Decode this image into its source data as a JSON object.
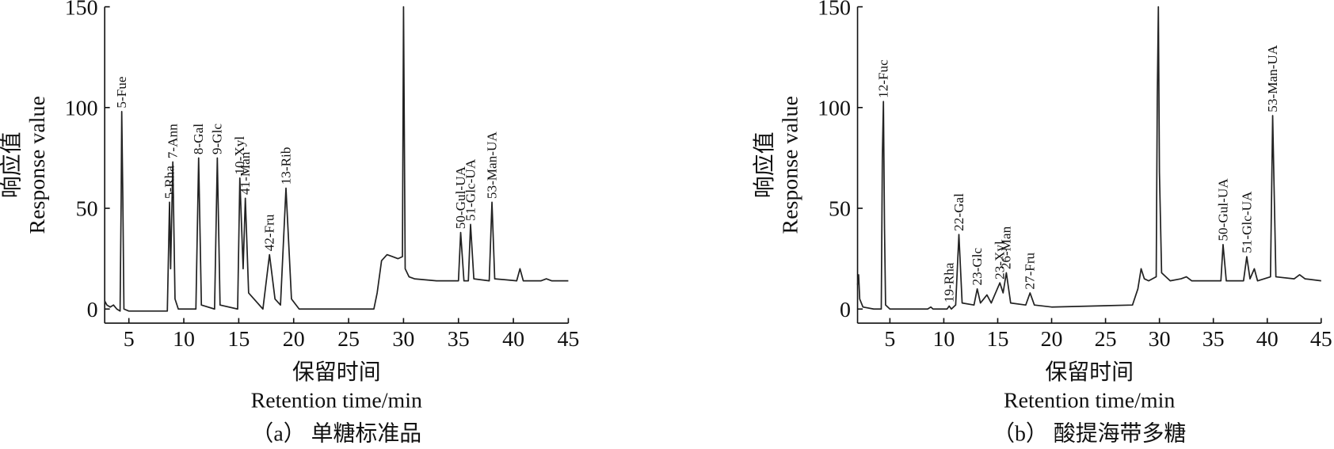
{
  "chart_data": [
    {
      "type": "line",
      "color": "#222",
      "ylabel": "响应值",
      "ylabel_en": "Response value",
      "xlabel": "保留时间",
      "xlabel_en": "Retention time/min",
      "caption": "（a） 单糖标准品",
      "xlim": [
        2.8,
        45
      ],
      "ylim": [
        -7,
        150
      ],
      "xticks": [
        5,
        10,
        15,
        20,
        25,
        30,
        35,
        40,
        45
      ],
      "yticks": [
        0,
        50,
        100,
        150
      ],
      "x": [
        2.8,
        3.0,
        3.3,
        3.6,
        3.9,
        4.2,
        4.3,
        4.35,
        4.45,
        4.55,
        5,
        8.5,
        8.7,
        8.8,
        9.0,
        9.2,
        9.5,
        11.1,
        11.35,
        11.6,
        12.8,
        13.05,
        13.3,
        14.9,
        15.1,
        15.4,
        15.6,
        15.9,
        17.2,
        17.8,
        18.3,
        18.8,
        19.3,
        19.8,
        20.5,
        27.3,
        27.6,
        28,
        28.5,
        29.0,
        29.5,
        29.9,
        30.0,
        30.15,
        30.5,
        31,
        33,
        35.0,
        35.2,
        35.5,
        35.9,
        36.1,
        36.4,
        37.8,
        38.05,
        38.3,
        40.3,
        40.6,
        40.9,
        42.5,
        43,
        43.5,
        45
      ],
      "values": [
        4,
        2,
        1,
        2,
        0,
        -1,
        55,
        98,
        55,
        0,
        -1,
        -1,
        53,
        20,
        73,
        5,
        0,
        0,
        75,
        2,
        0,
        75,
        2,
        0,
        65,
        20,
        55,
        8,
        0,
        27,
        5,
        2,
        60,
        5,
        0,
        0,
        8,
        24,
        27,
        26,
        25,
        26,
        150,
        20,
        16,
        15,
        14,
        14,
        38,
        14,
        14,
        42,
        15,
        14,
        53,
        15,
        14,
        20,
        14,
        14,
        15,
        14,
        14
      ],
      "annotations": [
        {
          "text": "5-Fue",
          "x": 4.35,
          "y": 98
        },
        {
          "text": "5-Rha",
          "x": 8.7,
          "y": 53
        },
        {
          "text": "7-Ann",
          "x": 9.0,
          "y": 73
        },
        {
          "text": "8-Gal",
          "x": 11.35,
          "y": 75
        },
        {
          "text": "9-Glc",
          "x": 13.05,
          "y": 75
        },
        {
          "text": "10-Xyl",
          "x": 15.1,
          "y": 65
        },
        {
          "text": "41-Man",
          "x": 15.6,
          "y": 55
        },
        {
          "text": "42-Fru",
          "x": 17.8,
          "y": 27
        },
        {
          "text": "13-Rib",
          "x": 19.3,
          "y": 60
        },
        {
          "text": "50-Gul-UA",
          "x": 35.2,
          "y": 38
        },
        {
          "text": "51-Glc-UA",
          "x": 36.1,
          "y": 42
        },
        {
          "text": "53-Man-UA",
          "x": 38.05,
          "y": 53
        }
      ]
    },
    {
      "type": "line",
      "color": "#222",
      "ylabel": "响应值",
      "ylabel_en": "Response value",
      "xlabel": "保留时间",
      "xlabel_en": "Retention time/min",
      "caption": "（b） 酸提海带多糖",
      "xlim": [
        2,
        45
      ],
      "ylim": [
        -7,
        150
      ],
      "xticks": [
        5,
        10,
        15,
        20,
        25,
        30,
        35,
        40,
        45
      ],
      "yticks": [
        0,
        50,
        100,
        150
      ],
      "x": [
        2.0,
        2.1,
        2.2,
        2.5,
        3.5,
        4.2,
        4.3,
        4.4,
        4.5,
        4.6,
        5,
        8.5,
        8.8,
        9,
        10.3,
        10.5,
        10.7,
        11.1,
        11.4,
        11.7,
        12.8,
        13.1,
        13.4,
        14.0,
        14.4,
        15.2,
        15.5,
        15.8,
        16.2,
        17.6,
        18.0,
        18.4,
        20,
        27.5,
        28,
        28.3,
        28.6,
        29,
        29.7,
        29.8,
        29.9,
        30.0,
        30.2,
        31,
        32,
        32.5,
        33,
        35.7,
        35.9,
        36.2,
        37.8,
        38.1,
        38.4,
        38.8,
        39.1,
        40.3,
        40.5,
        40.8,
        42.5,
        43,
        43.5,
        45
      ],
      "values": [
        12,
        17,
        5,
        1,
        0,
        0,
        75,
        103,
        40,
        2,
        0,
        0,
        1,
        0,
        0,
        1.5,
        0,
        2,
        37,
        3,
        2,
        10,
        3,
        7,
        3,
        13,
        8,
        18,
        3,
        2,
        8,
        2,
        1,
        2,
        10,
        20,
        15,
        14,
        16,
        105,
        150,
        68,
        18,
        14,
        15,
        16,
        14,
        14,
        32,
        14,
        14,
        26,
        15,
        20,
        14,
        16,
        96,
        16,
        15,
        17,
        15,
        14
      ],
      "annotations": [
        {
          "text": "12-Fuc",
          "x": 4.4,
          "y": 103
        },
        {
          "text": "19-Rha",
          "x": 10.5,
          "y": 1.5
        },
        {
          "text": "22-Gal",
          "x": 11.4,
          "y": 37
        },
        {
          "text": "23-Glc",
          "x": 13.1,
          "y": 10
        },
        {
          "text": "23-Xyl",
          "x": 15.2,
          "y": 13
        },
        {
          "text": "26-Man",
          "x": 15.8,
          "y": 18
        },
        {
          "text": "27-Fru",
          "x": 18.0,
          "y": 8
        },
        {
          "text": "50-Gul-UA",
          "x": 35.9,
          "y": 32
        },
        {
          "text": "51-Glc-UA",
          "x": 38.1,
          "y": 26
        },
        {
          "text": "53-Man-UA",
          "x": 40.5,
          "y": 96
        }
      ]
    }
  ]
}
